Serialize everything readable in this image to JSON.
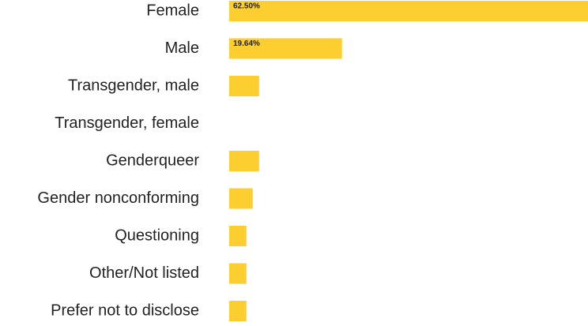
{
  "chart_data": {
    "type": "bar",
    "orientation": "horizontal",
    "categories": [
      "Female",
      "Male",
      "Transgender, male",
      "Transgender, female",
      "Genderqueer",
      "Gender nonconforming",
      "Questioning",
      "Other/Not listed",
      "Prefer not to disclose"
    ],
    "values": [
      62.5,
      19.64,
      5.2,
      0,
      5.2,
      4.1,
      3.0,
      3.0,
      3.0
    ],
    "value_labels": [
      "62.50%",
      "19.64%",
      null,
      null,
      null,
      null,
      null,
      null,
      null
    ],
    "color": "#fdce30",
    "xlim": [
      0,
      62.5
    ]
  }
}
